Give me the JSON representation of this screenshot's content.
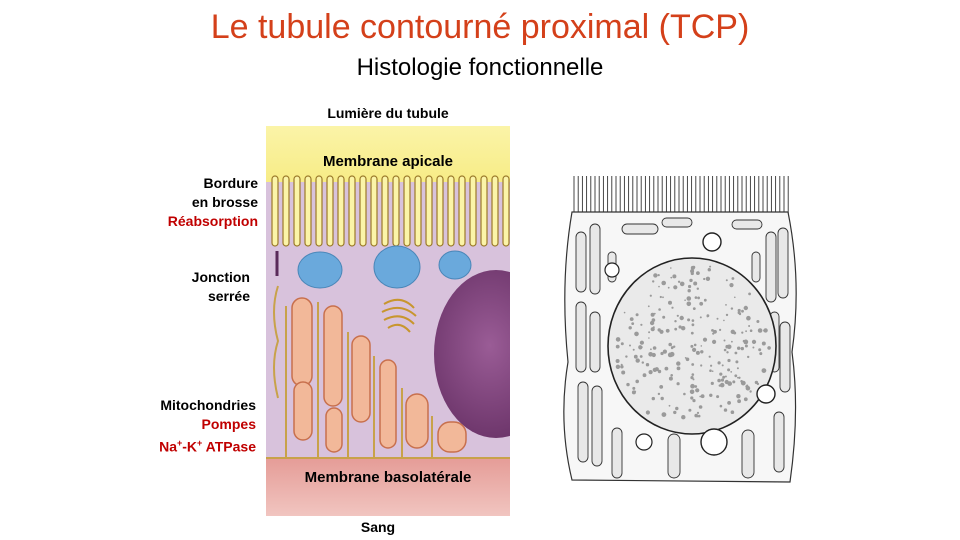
{
  "slide": {
    "title": "Le tubule contourné proximal (TCP)",
    "subtitle": "Histologie fonctionnelle"
  },
  "diagram": {
    "lumen_label": "Lumière du tubule",
    "apical_label": "Membrane apicale",
    "basolateral_label": "Membrane basolatérale",
    "blood_label": "Sang",
    "brush_border": {
      "line1": "Bordure",
      "line2": "en brosse",
      "function": "Réabsorption"
    },
    "tight_junction": {
      "line1": "Jonction",
      "line2": "serrée"
    },
    "mitochondria": {
      "name": "Mitochondries",
      "function_line1": "Pompes",
      "na": "Na",
      "plus1": "+",
      "k": "-K",
      "plus2": "+",
      "atpase": " ATPase"
    }
  },
  "colors": {
    "title": "#d4401a",
    "cytoplasm": "#d8c2dc",
    "lumen": "#fbf4a8",
    "basal": "#e08a86",
    "nucleus": "#7a3f77",
    "vesicle": "#6aa9dc",
    "mitochondria": "#f2b899"
  }
}
